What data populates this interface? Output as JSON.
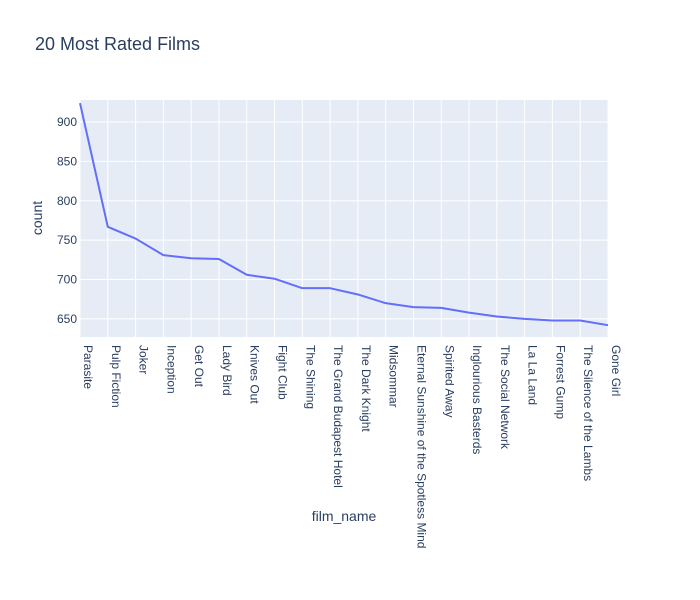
{
  "chart_data": {
    "type": "line",
    "title": "20 Most Rated Films",
    "xlabel": "film_name",
    "ylabel": "count",
    "ylim": [
      627,
      928
    ],
    "yticks": [
      650,
      700,
      750,
      800,
      850,
      900
    ],
    "grid": true,
    "legend": "none",
    "colors": {
      "line": "#636efa",
      "plot_bg": "#e5ecf6",
      "grid": "#ffffff",
      "text": "#2a3f5f"
    },
    "categories": [
      "Parasite",
      "Pulp Fiction",
      "Joker",
      "Inception",
      "Get Out",
      "Lady Bird",
      "Knives Out",
      "Fight Club",
      "The Shining",
      "The Grand Budapest Hotel",
      "The Dark Knight",
      "Midsommar",
      "Eternal Sunshine of the Spotless Mind",
      "Spirited Away",
      "Inglourious Basterds",
      "The Social Network",
      "La La Land",
      "Forrest Gump",
      "The Silence of the Lambs",
      "Gone Girl"
    ],
    "values": [
      924,
      767,
      752,
      731,
      727,
      726,
      706,
      701,
      689,
      689,
      681,
      670,
      665,
      664,
      658,
      653,
      650,
      648,
      648,
      642
    ]
  }
}
